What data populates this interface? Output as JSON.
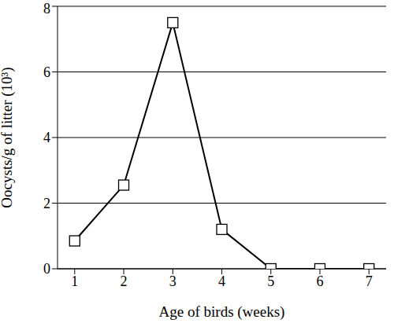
{
  "chart_data": {
    "type": "line",
    "x_label": "Age of birds (weeks)",
    "y_label": "Oocysts/g of litter (10³)",
    "x": [
      1,
      2,
      3,
      4,
      5,
      6,
      7
    ],
    "values": [
      0.85,
      2.55,
      7.5,
      1.2,
      0,
      0,
      0
    ],
    "color": "#000000",
    "marker": "square",
    "line_style": "solid",
    "xlim": [
      0.65,
      7.35
    ],
    "xticks": [
      1,
      2,
      3,
      4,
      5,
      6,
      7
    ],
    "ylim": [
      0,
      8
    ],
    "yticks": [
      0,
      2,
      4,
      6,
      8
    ],
    "grid": true
  }
}
